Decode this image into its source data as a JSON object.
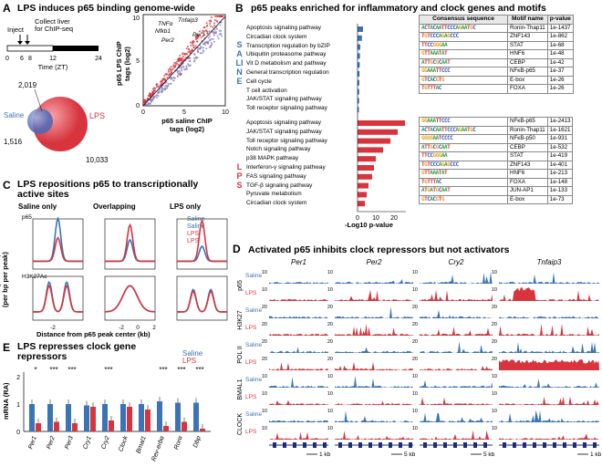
{
  "panels": {
    "a": {
      "label": "A",
      "title": "LPS induces p65 binding genome-wide",
      "inject": "Inject",
      "collect": "Collect liver\nfor ChIP-seq",
      "timeline_ticks": [
        "0",
        "6",
        "8",
        "12",
        "24"
      ],
      "timeline_axis": "Time (ZT)",
      "venn": {
        "saline_label": "Saline",
        "lps_label": "LPS",
        "saline_only": "1,516",
        "overlap": "2,019",
        "lps_only": "10,033"
      },
      "scatter": {
        "ylabel": "p65 LPS ChIP\ntags (log2)",
        "xlabel": "p65 saline ChIP\ntags (log2)",
        "ticks": [
          "0",
          "5",
          "10"
        ],
        "gene_labels": [
          "TNFα",
          "Nfkb1",
          "Tnfaip3",
          "Per2",
          "Per1"
        ]
      }
    },
    "b": {
      "label": "B",
      "title": "p65 peaks enriched for inflammatory and clock genes and motifs",
      "saline_side": "SALINE",
      "lps_side": "LPS",
      "saline_pathways": [
        "Apoptosis signaling pathway",
        "Circadian clock system",
        "Transcription regulation by bZIP",
        "Ubiquitin proteasome pathway",
        "Vit D metabolism and pathway",
        "General transcription regulation",
        "Cell cycle",
        "T cell activation",
        "JAK/STAT signaling pathway",
        "Toll receptor signaling pathway"
      ],
      "saline_values": [
        5,
        4,
        2.5,
        2.2,
        2,
        1.8,
        1.6,
        1.5,
        1.4,
        1.2
      ],
      "lps_pathways": [
        "Apoptosis signaling pathway",
        "JAK/STAT signaling pathway",
        "Toll receptor signaling pathway",
        "Notch signaling pathway",
        "p38 MAPK pathway",
        "Interferon-γ signaling pathway",
        "FAS signaling pathway",
        "TGF-β signaling pathway",
        "Pyruvate metabolism",
        "Circadian clock system"
      ],
      "lps_values": [
        26,
        22,
        18,
        14,
        10,
        9,
        8,
        6,
        5,
        4
      ],
      "xaxis_ticks": [
        "0",
        "10",
        "20"
      ],
      "xaxis_label": "-Log10 p-value",
      "table_headers": [
        "Consensus sequence",
        "Motif name",
        "p-value"
      ],
      "saline_motifs": [
        {
          "seq": "ACTACAATTCCCAGAATGC",
          "name": "Ronin-Thap11",
          "p": "1e-1437"
        },
        {
          "seq": "TGTCCCAGAGCCC",
          "name": "ZNF143",
          "p": "1e-862"
        },
        {
          "seq": "TTCCGGGAA",
          "name": "STAT",
          "p": "1e-68"
        },
        {
          "seq": "GTTAAATAT",
          "name": "HNF6",
          "p": "1e-48"
        },
        {
          "seq": "ATTGCGCAAT",
          "name": "CEBP",
          "p": "1e-42"
        },
        {
          "seq": "GGAAATTCCC",
          "name": "NFκB-p65",
          "p": "1e-37"
        },
        {
          "seq": "GTCACGTG",
          "name": "E-box",
          "p": "1e-26"
        },
        {
          "seq": "TGTTTAC",
          "name": "FOXA",
          "p": "1e-26"
        }
      ],
      "lps_motifs": [
        {
          "seq": "GGAAATTCCC",
          "name": "NFκB-p65",
          "p": "1e-2413"
        },
        {
          "seq": "ACTACAATTCCCAGAATGC",
          "name": "Ronin-Thap11",
          "p": "1e-1621"
        },
        {
          "seq": "GGGGAATCCCC",
          "name": "NFκB-p50",
          "p": "1e-931"
        },
        {
          "seq": "ATTGCGCAAT",
          "name": "CEBP",
          "p": "1e-532"
        },
        {
          "seq": "TTCCGGGAA",
          "name": "STAT",
          "p": "1e-419"
        },
        {
          "seq": "TGTCCCAGAGCCC",
          "name": "ZNF143",
          "p": "1e-401"
        },
        {
          "seq": "GTTAAATAT",
          "name": "HNF6",
          "p": "1e-213"
        },
        {
          "seq": "TGTTTAC",
          "name": "FOXA",
          "p": "1e-148"
        },
        {
          "seq": "ATGATGCAAT",
          "name": "JUN-AP1",
          "p": "1e-133"
        },
        {
          "seq": "GTCACGTG",
          "name": "E-box",
          "p": "1e-73"
        }
      ]
    },
    "c": {
      "label": "C",
      "title": "LPS repositions p65 to transcriptionally\nactive sites",
      "cols": [
        "Saline only",
        "Overlapping",
        "LPS only"
      ],
      "row1": "p65",
      "row2": "H3K27Ac",
      "ylabel": "ChIP-fragment depth\n(per bp per peak)",
      "xlabel": "Distance from p65 peak center (kb)",
      "xticks": [
        "-2",
        "0",
        "2"
      ],
      "legend": [
        "Saline",
        "LPS"
      ]
    },
    "d": {
      "label": "D",
      "title": "Activated p65 inhibits clock repressors but not activators",
      "genes": [
        "Per1",
        "Per2",
        "Cry2",
        "Tnfaip3"
      ],
      "tracks": [
        {
          "name": "p65",
          "max": "10"
        },
        {
          "name": "H3K27",
          "max": "20"
        },
        {
          "name": "POL II",
          "max": "20"
        },
        {
          "name": "BMAL1",
          "max": "10"
        },
        {
          "name": "CLOCK",
          "max": "10"
        }
      ],
      "conditions": [
        "Saline",
        "LPS"
      ],
      "scales": [
        "1 kb",
        "5 kb",
        "5 kb",
        "1 kb"
      ]
    },
    "e": {
      "label": "E",
      "title": "LPS represses clock gene\nrepressors",
      "ylabel": "mRNA (RA)",
      "legend": [
        "Saline",
        "LPS"
      ],
      "yticks": [
        "0",
        "1",
        "2"
      ],
      "stars": [
        "*",
        "***",
        "***",
        "***",
        "***",
        "***",
        "***"
      ]
    }
  },
  "chart_data": [
    {
      "type": "bar",
      "title": "LPS represses clock gene repressors",
      "ylabel": "mRNA (RA)",
      "ylim": [
        0,
        2
      ],
      "categories": [
        "Per1",
        "Per2",
        "Per3",
        "Cry1",
        "Cry2",
        "Clock",
        "Bmal1",
        "Rev-erbα",
        "Rorα",
        "Dbp"
      ],
      "series": [
        {
          "name": "Saline",
          "values": [
            1.0,
            1.0,
            1.0,
            0.95,
            1.0,
            1.0,
            1.0,
            1.1,
            1.05,
            1.05
          ]
        },
        {
          "name": "LPS",
          "values": [
            0.3,
            0.35,
            0.3,
            0.9,
            0.4,
            0.9,
            0.8,
            0.2,
            0.35,
            0.1
          ]
        }
      ]
    },
    {
      "type": "bar",
      "title": "Saline pathways",
      "categories": [
        "Apoptosis signaling pathway",
        "Circadian clock system",
        "Transcription regulation by bZIP",
        "Ubiquitin proteasome pathway",
        "Vit D metabolism and pathway",
        "General transcription regulation",
        "Cell cycle",
        "T cell activation",
        "JAK/STAT signaling pathway",
        "Toll receptor signaling pathway"
      ],
      "values": [
        5,
        4,
        2.5,
        2.2,
        2,
        1.8,
        1.6,
        1.5,
        1.4,
        1.2
      ],
      "xlabel": "-Log10 p-value"
    },
    {
      "type": "bar",
      "title": "LPS pathways",
      "categories": [
        "Apoptosis signaling pathway",
        "JAK/STAT signaling pathway",
        "Toll receptor signaling pathway",
        "Notch signaling pathway",
        "p38 MAPK pathway",
        "Interferon-γ signaling pathway",
        "FAS signaling pathway",
        "TGF-β signaling pathway",
        "Pyruvate metabolism",
        "Circadian clock system"
      ],
      "values": [
        26,
        22,
        18,
        14,
        10,
        9,
        8,
        6,
        5,
        4
      ],
      "xlabel": "-Log10 p-value"
    }
  ],
  "colors": {
    "saline": "#3a74b6",
    "lps": "#d8343e"
  }
}
